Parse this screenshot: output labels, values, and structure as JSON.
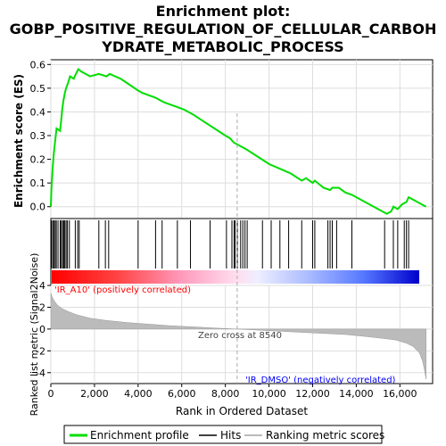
{
  "title_line1": "Enrichment plot:",
  "title_line2": "GOBP_POSITIVE_REGULATION_OF_CELLULAR_CARBOH",
  "title_line3": "YDRATE_METABOLIC_PROCESS",
  "colors": {
    "es_line": "#00dd00",
    "hits": "#000000",
    "metric_fill": "#bbbbbb",
    "pos_label": "#ff0000",
    "neg_label": "#0000ff",
    "zero_line": "#aaaaaa"
  },
  "chart_data": [
    {
      "type": "line",
      "ylabel": "Enrichment score (ES)",
      "xlim": [
        0,
        17500
      ],
      "ylim": [
        -0.05,
        0.62
      ],
      "yticks": [
        0.0,
        0.1,
        0.2,
        0.3,
        0.4,
        0.5,
        0.6
      ],
      "ytick_labels": [
        "0.0",
        "0.1",
        "0.2",
        "0.3",
        "0.4",
        "0.5",
        "0.6"
      ],
      "grid": true,
      "series": [
        {
          "name": "Enrichment profile",
          "x": [
            0,
            30,
            80,
            130,
            200,
            260,
            420,
            470,
            520,
            580,
            640,
            700,
            780,
            880,
            1050,
            1150,
            1260,
            1400,
            1800,
            2200,
            2550,
            2700,
            3200,
            4000,
            4200,
            4800,
            5000,
            5200,
            5800,
            6100,
            6500,
            7000,
            7500,
            8000,
            8200,
            8400,
            8600,
            8800,
            9000,
            9500,
            10000,
            10500,
            11000,
            11500,
            11700,
            12000,
            12100,
            12500,
            12800,
            12900,
            13200,
            13500,
            13800,
            14200,
            14800,
            15200,
            15400,
            15600,
            15700,
            15900,
            16100,
            16300,
            16400,
            16600,
            17000,
            17200
          ],
          "y": [
            0.0,
            0.08,
            0.16,
            0.22,
            0.28,
            0.33,
            0.32,
            0.36,
            0.41,
            0.45,
            0.48,
            0.5,
            0.52,
            0.55,
            0.54,
            0.56,
            0.58,
            0.57,
            0.55,
            0.56,
            0.55,
            0.56,
            0.54,
            0.49,
            0.48,
            0.46,
            0.45,
            0.44,
            0.42,
            0.41,
            0.39,
            0.36,
            0.33,
            0.3,
            0.29,
            0.27,
            0.26,
            0.25,
            0.24,
            0.21,
            0.18,
            0.16,
            0.14,
            0.11,
            0.12,
            0.1,
            0.11,
            0.08,
            0.07,
            0.08,
            0.08,
            0.06,
            0.05,
            0.03,
            0.0,
            -0.02,
            -0.03,
            -0.02,
            0.0,
            -0.01,
            0.01,
            0.02,
            0.04,
            0.03,
            0.01,
            0.0
          ]
        }
      ]
    },
    {
      "type": "scatter",
      "name": "Hits",
      "xlim": [
        0,
        17500
      ],
      "hit_positions": [
        30,
        90,
        140,
        200,
        250,
        330,
        430,
        480,
        540,
        590,
        640,
        700,
        760,
        850,
        1120,
        1230,
        1300,
        2200,
        2500,
        2650,
        4000,
        4800,
        5100,
        5800,
        6400,
        7300,
        8050,
        8300,
        8400,
        8450,
        8550,
        8700,
        8800,
        8900,
        9000,
        9700,
        10100,
        10500,
        10900,
        11500,
        12000,
        12100,
        12700,
        12800,
        12900,
        13100,
        13800,
        15300,
        15700,
        15900,
        16200,
        16300,
        16400
      ]
    },
    {
      "type": "area",
      "ylabel": "Ranked list metric (Signal2Noise)",
      "xlabel": "Rank in Ordered Dataset",
      "xlim": [
        0,
        17500
      ],
      "ylim": [
        -5,
        4
      ],
      "yticks": [
        -4,
        -2,
        0,
        2,
        4
      ],
      "ytick_labels": [
        "-4",
        "-2",
        "0",
        "2",
        "4"
      ],
      "xticks": [
        0,
        2000,
        4000,
        6000,
        8000,
        10000,
        12000,
        14000,
        16000
      ],
      "xtick_labels": [
        "0",
        "2,000",
        "4,000",
        "6,000",
        "8,000",
        "10,000",
        "12,000",
        "14,000",
        "16,000"
      ],
      "grid": true,
      "zero_cross": 8540,
      "series": [
        {
          "name": "Ranking metric scores",
          "x": [
            0,
            50,
            150,
            300,
            500,
            800,
            1200,
            1800,
            2500,
            3500,
            4500,
            5500,
            6500,
            7500,
            8540,
            9500,
            10500,
            11500,
            12500,
            13500,
            14500,
            15200,
            15800,
            16300,
            16600,
            16900,
            17050,
            17150,
            17200
          ],
          "y": [
            3.3,
            3.0,
            2.6,
            2.2,
            1.9,
            1.6,
            1.3,
            1.0,
            0.8,
            0.6,
            0.45,
            0.3,
            0.2,
            0.1,
            0.0,
            -0.1,
            -0.2,
            -0.3,
            -0.4,
            -0.5,
            -0.7,
            -0.85,
            -1.0,
            -1.3,
            -1.6,
            -2.2,
            -3.0,
            -4.0,
            -4.6
          ]
        }
      ],
      "annotations": {
        "positive": "'IR_A10' (positively correlated)",
        "negative": "'IR_DMSO' (negatively correlated)",
        "zero_cross": "Zero cross at 8540"
      }
    }
  ],
  "legend": {
    "items": [
      {
        "label": "Enrichment profile",
        "color": "#00dd00"
      },
      {
        "label": "Hits",
        "color": "#000000"
      },
      {
        "label": "Ranking metric scores",
        "color": "#bbbbbb"
      }
    ]
  }
}
